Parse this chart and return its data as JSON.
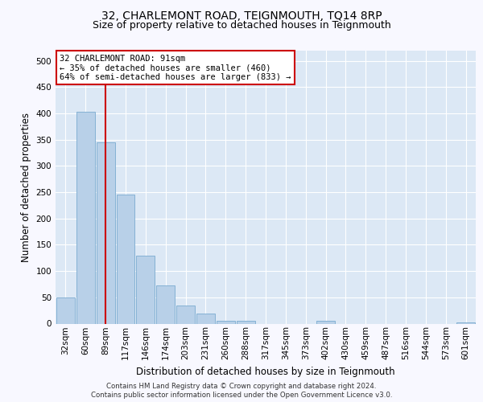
{
  "title": "32, CHARLEMONT ROAD, TEIGNMOUTH, TQ14 8RP",
  "subtitle": "Size of property relative to detached houses in Teignmouth",
  "xlabel": "Distribution of detached houses by size in Teignmouth",
  "ylabel": "Number of detached properties",
  "bar_labels": [
    "32sqm",
    "60sqm",
    "89sqm",
    "117sqm",
    "146sqm",
    "174sqm",
    "203sqm",
    "231sqm",
    "260sqm",
    "288sqm",
    "317sqm",
    "345sqm",
    "373sqm",
    "402sqm",
    "430sqm",
    "459sqm",
    "487sqm",
    "516sqm",
    "544sqm",
    "573sqm",
    "601sqm"
  ],
  "bar_values": [
    50,
    403,
    345,
    246,
    130,
    72,
    35,
    19,
    6,
    5,
    0,
    0,
    0,
    5,
    0,
    0,
    0,
    0,
    0,
    0,
    2
  ],
  "bar_color": "#b8d0e8",
  "bar_edge_color": "#7aaacf",
  "vline_x": 2,
  "vline_color": "#cc0000",
  "ylim": [
    0,
    520
  ],
  "yticks": [
    0,
    50,
    100,
    150,
    200,
    250,
    300,
    350,
    400,
    450,
    500
  ],
  "annotation_title": "32 CHARLEMONT ROAD: 91sqm",
  "annotation_line1": "← 35% of detached houses are smaller (460)",
  "annotation_line2": "64% of semi-detached houses are larger (833) →",
  "annotation_box_color": "#ffffff",
  "annotation_box_edge": "#cc0000",
  "footer1": "Contains HM Land Registry data © Crown copyright and database right 2024.",
  "footer2": "Contains public sector information licensed under the Open Government Licence v3.0.",
  "fig_bg_color": "#f8f8ff",
  "plot_bg_color": "#dce8f5",
  "grid_color": "#ffffff",
  "title_fontsize": 10,
  "subtitle_fontsize": 9,
  "axis_label_fontsize": 8.5,
  "tick_fontsize": 7.5
}
